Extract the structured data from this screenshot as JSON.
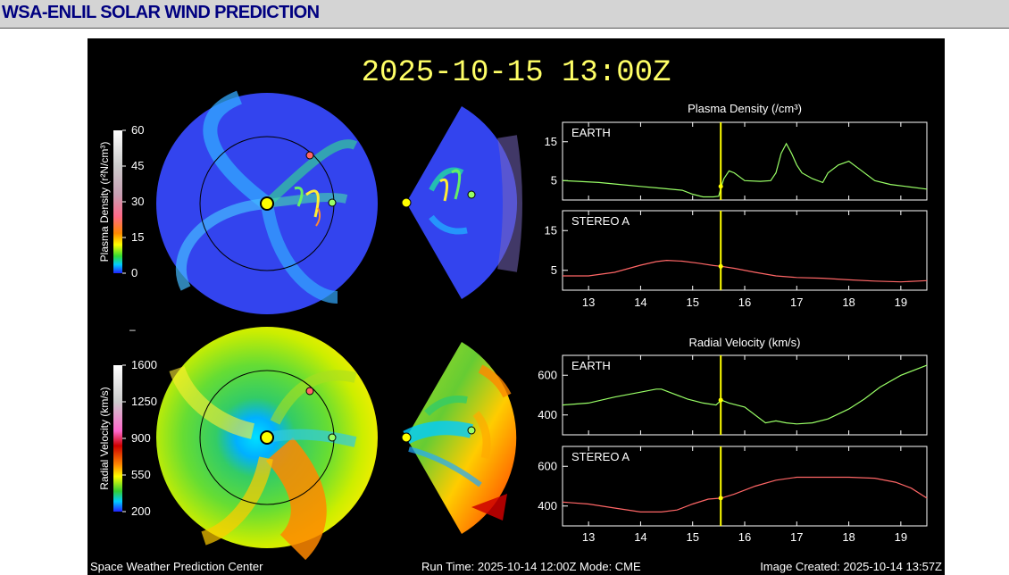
{
  "page": {
    "title": "WSA-ENLIL SOLAR WIND PREDICTION"
  },
  "figure": {
    "timestamp": "2025-10-15 13:00Z",
    "footer_left": "Space Weather Prediction Center",
    "footer_center": "Run Time: 2025-10-14 12:00Z  Mode: CME",
    "footer_right": "Image Created: 2025-10-14 13:57Z",
    "separator_mark": "–",
    "colors": {
      "background": "#000000",
      "timestamp": "#ffff66",
      "earth_series": "#99ff66",
      "stereo_series": "#ff6666",
      "current_time_line": "#ffff00",
      "sun_marker": "#ffff00"
    },
    "density_colorbar": {
      "label": "Plasma Density (r²N/cm³)",
      "ticks": [
        "60",
        "45",
        "30",
        "15",
        "0"
      ]
    },
    "velocity_colorbar": {
      "label": "Radial Velocity (km/s)",
      "ticks": [
        "1600",
        "1250",
        "900",
        "550",
        "200"
      ]
    }
  },
  "chart_data": [
    {
      "type": "line",
      "title": "Plasma Density (/cm³)",
      "xlim": [
        12.5,
        19.5
      ],
      "xticks": [
        "13",
        "14",
        "15",
        "16",
        "17",
        "18",
        "19"
      ],
      "current_time": 15.54,
      "panels": [
        {
          "label": "EARTH",
          "color": "#99ff66",
          "ylim": [
            0,
            20
          ],
          "yticks": [
            5,
            15
          ],
          "x": [
            12.5,
            12.8,
            13.2,
            13.6,
            14.0,
            14.4,
            14.8,
            15.0,
            15.2,
            15.4,
            15.5,
            15.55,
            15.6,
            15.7,
            15.8,
            16.0,
            16.3,
            16.5,
            16.6,
            16.7,
            16.8,
            16.9,
            17.0,
            17.1,
            17.3,
            17.5,
            17.6,
            17.8,
            18.0,
            18.2,
            18.5,
            18.8,
            19.1,
            19.5
          ],
          "y": [
            5,
            4.8,
            4.5,
            4.0,
            3.5,
            3.0,
            2.5,
            1.5,
            0.8,
            0.8,
            1.0,
            3.5,
            5.5,
            7.5,
            7.0,
            5.0,
            4.8,
            5.0,
            7.0,
            12.0,
            14.5,
            12.0,
            9.0,
            7.0,
            5.5,
            4.5,
            7.0,
            9.0,
            10.0,
            8.0,
            5.0,
            4.0,
            3.5,
            2.8
          ]
        },
        {
          "label": "STEREO A",
          "color": "#ff6666",
          "ylim": [
            0,
            20
          ],
          "yticks": [
            5,
            15
          ],
          "x": [
            12.5,
            13.0,
            13.5,
            14.0,
            14.3,
            14.5,
            14.8,
            15.1,
            15.4,
            15.55,
            15.8,
            16.2,
            16.6,
            17.0,
            17.5,
            18.0,
            18.5,
            19.0,
            19.5
          ],
          "y": [
            3.6,
            3.6,
            4.5,
            6.3,
            7.2,
            7.5,
            7.3,
            6.8,
            6.2,
            6.0,
            5.5,
            4.5,
            3.6,
            3.2,
            3.0,
            2.6,
            2.3,
            2.1,
            2.4
          ]
        }
      ]
    },
    {
      "type": "line",
      "title": "Radial Velocity (km/s)",
      "xlim": [
        12.5,
        19.5
      ],
      "xticks": [
        "13",
        "14",
        "15",
        "16",
        "17",
        "18",
        "19"
      ],
      "current_time": 15.54,
      "panels": [
        {
          "label": "EARTH",
          "color": "#99ff66",
          "ylim": [
            300,
            700
          ],
          "yticks": [
            400,
            600
          ],
          "x": [
            12.5,
            13.0,
            13.5,
            14.0,
            14.3,
            14.4,
            14.6,
            14.9,
            15.2,
            15.45,
            15.55,
            15.7,
            16.0,
            16.4,
            16.6,
            16.8,
            17.0,
            17.3,
            17.6,
            18.0,
            18.3,
            18.6,
            19.0,
            19.5
          ],
          "y": [
            450,
            460,
            490,
            515,
            530,
            530,
            510,
            480,
            460,
            450,
            475,
            460,
            440,
            360,
            370,
            360,
            355,
            360,
            380,
            430,
            480,
            540,
            600,
            650
          ]
        },
        {
          "label": "STEREO A",
          "color": "#ff6666",
          "ylim": [
            300,
            700
          ],
          "yticks": [
            400,
            600
          ],
          "x": [
            12.5,
            13.0,
            13.5,
            14.0,
            14.4,
            14.7,
            15.0,
            15.3,
            15.55,
            15.8,
            16.2,
            16.6,
            17.0,
            17.5,
            18.0,
            18.5,
            18.9,
            19.2,
            19.5
          ],
          "y": [
            420,
            410,
            390,
            370,
            370,
            380,
            410,
            435,
            440,
            460,
            500,
            530,
            545,
            545,
            545,
            540,
            520,
            490,
            440
          ]
        }
      ]
    }
  ]
}
